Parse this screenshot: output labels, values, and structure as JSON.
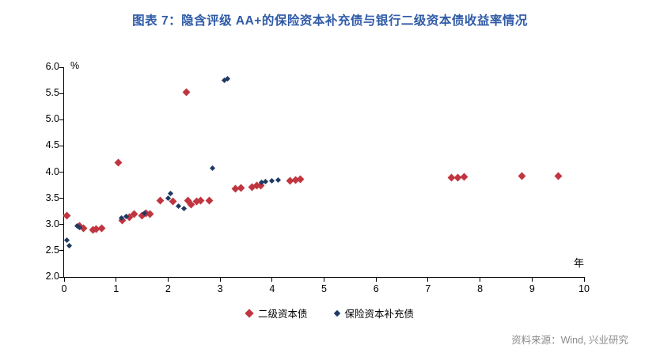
{
  "header": {
    "title": "图表 7：隐含评级 AA+的保险资本补充债与银行二级资本债收益率情况"
  },
  "footer": {
    "source": "资料来源：Wind, 兴业研究"
  },
  "chart_data": {
    "type": "scatter",
    "title": "图表 7：隐含评级 AA+的保险资本补充债与银行二级资本债收益率情况",
    "xlabel": "年",
    "ylabel": "%",
    "xlim": [
      0,
      10
    ],
    "ylim": [
      2.0,
      6.0
    ],
    "x_tick_labels": [
      "0",
      "1",
      "2",
      "3",
      "4",
      "5",
      "6",
      "7",
      "8",
      "9",
      "10"
    ],
    "y_tick_labels": [
      "2.0",
      "2.5",
      "3.0",
      "3.5",
      "4.0",
      "4.5",
      "5.0",
      "5.5",
      "6.0"
    ],
    "grid": false,
    "legend_position": "bottom",
    "series": [
      {
        "name": "二级资本债",
        "color": "#C13540",
        "marker": "diamond",
        "marker_size": 7,
        "points": [
          [
            0.05,
            3.17
          ],
          [
            0.3,
            2.97
          ],
          [
            0.38,
            2.93
          ],
          [
            0.55,
            2.9
          ],
          [
            0.62,
            2.91
          ],
          [
            0.72,
            2.93
          ],
          [
            1.05,
            4.18
          ],
          [
            1.12,
            3.08
          ],
          [
            1.25,
            3.14
          ],
          [
            1.35,
            3.2
          ],
          [
            1.5,
            3.17
          ],
          [
            1.57,
            3.22
          ],
          [
            1.65,
            3.2
          ],
          [
            1.85,
            3.45
          ],
          [
            2.1,
            3.44
          ],
          [
            2.35,
            5.52
          ],
          [
            2.38,
            3.45
          ],
          [
            2.45,
            3.38
          ],
          [
            2.55,
            3.44
          ],
          [
            2.62,
            3.45
          ],
          [
            2.8,
            3.45
          ],
          [
            3.3,
            3.68
          ],
          [
            3.4,
            3.7
          ],
          [
            3.62,
            3.72
          ],
          [
            3.7,
            3.74
          ],
          [
            3.78,
            3.75
          ],
          [
            4.35,
            3.84
          ],
          [
            4.45,
            3.85
          ],
          [
            4.55,
            3.86
          ],
          [
            7.45,
            3.89
          ],
          [
            7.57,
            3.9
          ],
          [
            7.7,
            3.91
          ],
          [
            8.8,
            3.92
          ],
          [
            9.5,
            3.93
          ]
        ]
      },
      {
        "name": "保险资本补充债",
        "color": "#1F3A63",
        "marker": "diamond",
        "marker_size": 5,
        "points": [
          [
            0.05,
            2.7
          ],
          [
            0.1,
            2.6
          ],
          [
            0.25,
            2.97
          ],
          [
            0.3,
            2.94
          ],
          [
            1.1,
            3.12
          ],
          [
            1.2,
            3.16
          ],
          [
            1.55,
            3.22
          ],
          [
            2.0,
            3.5
          ],
          [
            2.05,
            3.6
          ],
          [
            2.2,
            3.35
          ],
          [
            2.3,
            3.3
          ],
          [
            2.85,
            4.07
          ],
          [
            3.08,
            5.75
          ],
          [
            3.15,
            5.78
          ],
          [
            3.8,
            3.8
          ],
          [
            3.88,
            3.82
          ],
          [
            4.0,
            3.84
          ],
          [
            4.12,
            3.85
          ]
        ]
      }
    ]
  }
}
